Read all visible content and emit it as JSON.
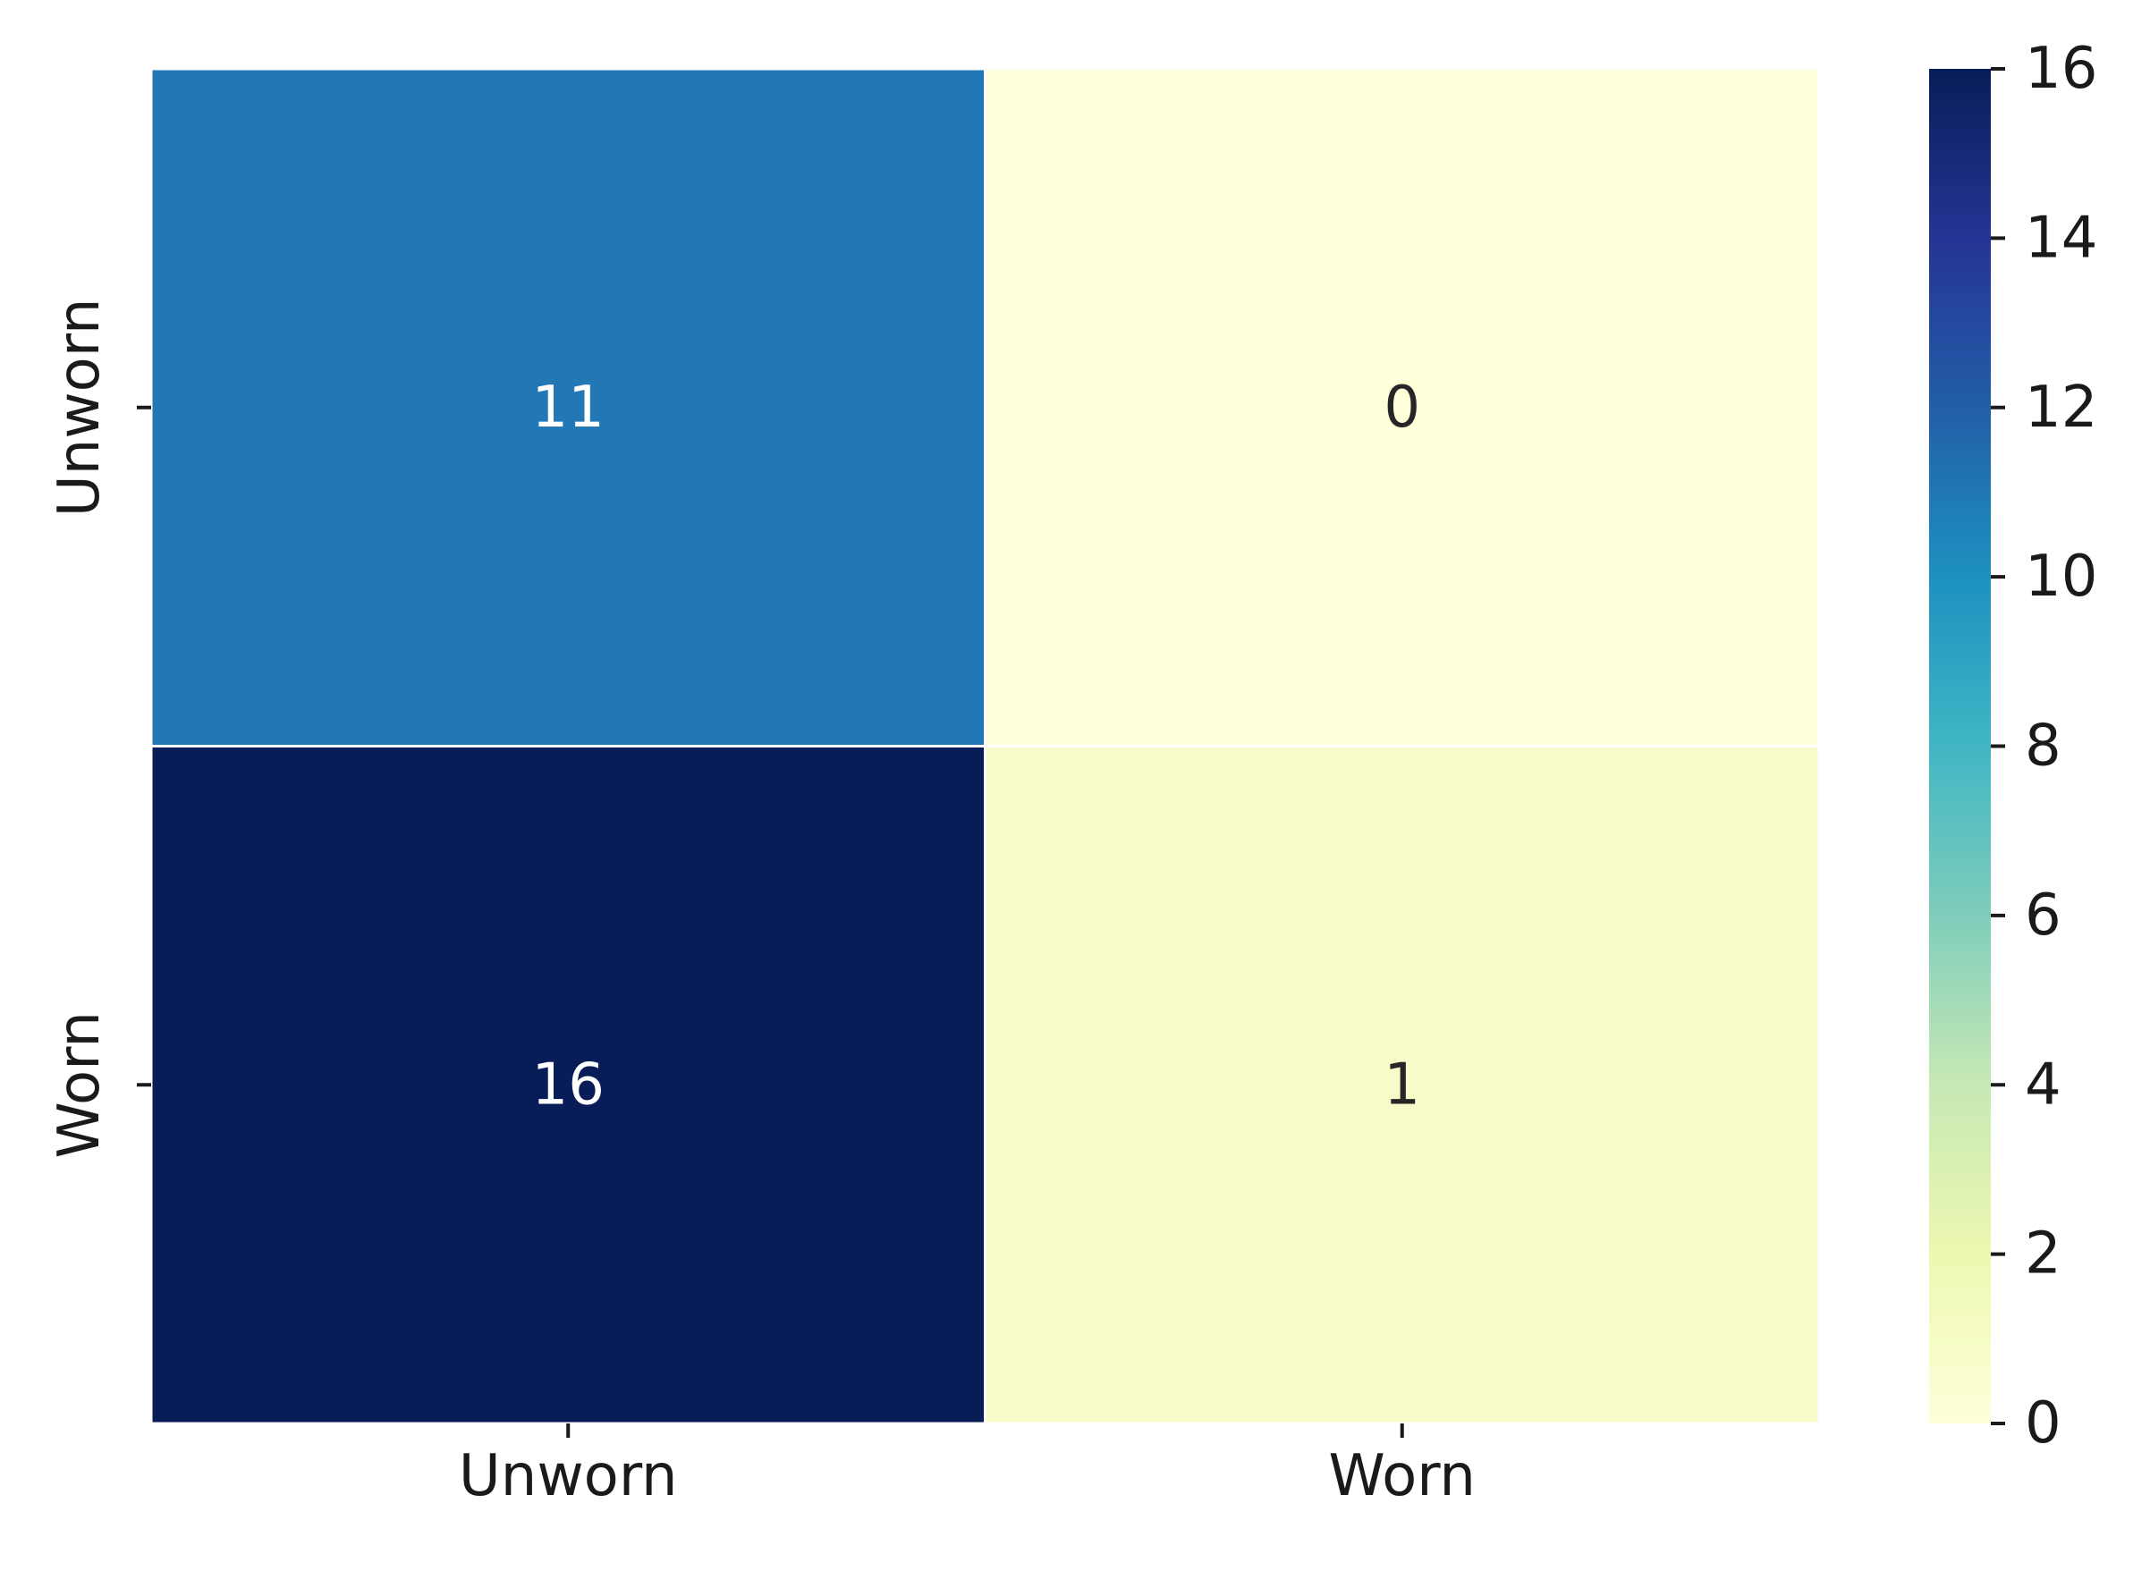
{
  "chart_data": {
    "type": "heatmap",
    "title": "",
    "xlabel": "",
    "ylabel": "",
    "x_categories": [
      "Unworn",
      "Worn"
    ],
    "y_categories": [
      "Unworn",
      "Worn"
    ],
    "values": [
      [
        11,
        0
      ],
      [
        16,
        1
      ]
    ],
    "annotations": [
      [
        "11",
        "0"
      ],
      [
        "16",
        "1"
      ]
    ],
    "colormap": "YlGnBu",
    "colorbar": {
      "vmin": 0,
      "vmax": 16,
      "ticks": [
        0,
        2,
        4,
        6,
        8,
        10,
        12,
        14,
        16
      ],
      "tick_labels": [
        "0",
        "2",
        "4",
        "6",
        "8",
        "10",
        "12",
        "14",
        "16"
      ],
      "placement": "right"
    },
    "colors": {
      "cell_11": "#2178b4",
      "cell_0": "#ffffd9",
      "cell_16": "#081d58",
      "cell_1": "#f6fbc9",
      "annotation_dark": "#ffffff",
      "annotation_light": "#262626"
    }
  }
}
